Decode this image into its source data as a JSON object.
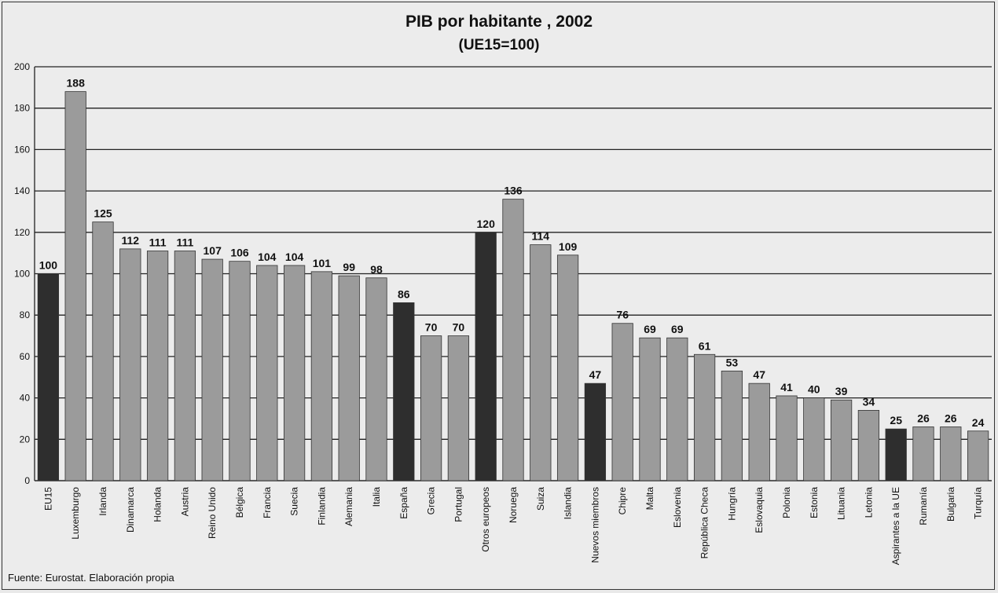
{
  "header": {
    "title": "PIB por habitante , 2002",
    "subtitle": "(UE15=100)"
  },
  "footer": {
    "source": "Fuente: Eurostat. Elaboración propia"
  },
  "colors": {
    "highlight_bar": "#2e2e2e",
    "regular_bar": "#9b9b9b",
    "background": "#ececec",
    "grid": "#222222"
  },
  "chart_data": {
    "type": "bar",
    "title": "PIB por habitante , 2002",
    "subtitle": "(UE15=100)",
    "xlabel": "",
    "ylabel": "",
    "ylim": [
      0,
      200
    ],
    "yticks": [
      0,
      20,
      40,
      60,
      80,
      100,
      120,
      140,
      160,
      180,
      200
    ],
    "grid": true,
    "categories": [
      "EU15",
      "Luxemburgo",
      "Irlanda",
      "Dinamarca",
      "Holanda",
      "Austria",
      "Reino Unido",
      "Bélgica",
      "Francia",
      "Suecia",
      "Finlandia",
      "Alemania",
      "Italia",
      "España",
      "Grecia",
      "Portugal",
      "Otros europeos",
      "Noruega",
      "Suiza",
      "Islandia",
      "Nuevos miembros",
      "Chipre",
      "Malta",
      "Eslovenia",
      "República Checa",
      "Hungría",
      "Eslovaquia",
      "Polonia",
      "Estonia",
      "Lituania",
      "Letonia",
      "Aspirantes a la UE",
      "Rumanía",
      "Bulgaria",
      "Turquía"
    ],
    "values": [
      100,
      188,
      125,
      112,
      111,
      111,
      107,
      106,
      104,
      104,
      101,
      99,
      98,
      86,
      70,
      70,
      120,
      136,
      114,
      109,
      47,
      76,
      69,
      69,
      61,
      53,
      47,
      41,
      40,
      39,
      34,
      25,
      26,
      26,
      24
    ],
    "highlighted": [
      "EU15",
      "España",
      "Otros europeos",
      "Nuevos miembros",
      "Aspirantes a la UE"
    ]
  }
}
